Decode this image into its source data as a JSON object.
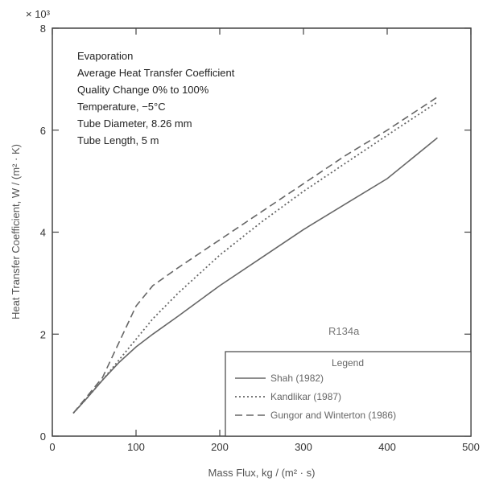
{
  "chart_data": {
    "type": "line",
    "xlabel": "Mass Flux, kg / (m² · s)",
    "ylabel": "Heat Transfer Coefficient, W / (m² · K)",
    "y_multiplier": "× 10³",
    "xlim": [
      0,
      500
    ],
    "ylim": [
      0,
      8
    ],
    "xticks": [
      0,
      100,
      200,
      300,
      400,
      500
    ],
    "yticks": [
      0,
      2,
      4,
      6,
      8
    ],
    "grid": false,
    "annotations": [
      "Evaporation",
      "Average Heat Transfer Coefficient",
      "Quality Change 0% to 100%",
      "Temperature, −5°C",
      "Tube Diameter, 8.26 mm",
      "Tube Length, 5 m"
    ],
    "refrigerant_label": "R134a",
    "legend_title": "Legend",
    "legend_position": "bottom-right",
    "series": [
      {
        "name": "Shah (1982)",
        "style": "solid",
        "x": [
          25,
          40,
          60,
          80,
          100,
          120,
          150,
          200,
          250,
          300,
          350,
          400,
          460
        ],
        "y": [
          0.45,
          0.72,
          1.1,
          1.45,
          1.75,
          2.0,
          2.35,
          2.95,
          3.5,
          4.05,
          4.55,
          5.05,
          5.85
        ]
      },
      {
        "name": "Kandlikar (1987)",
        "style": "dotted",
        "x": [
          25,
          40,
          60,
          80,
          100,
          120,
          150,
          200,
          250,
          300,
          350,
          400,
          460
        ],
        "y": [
          0.45,
          0.72,
          1.1,
          1.5,
          1.9,
          2.3,
          2.8,
          3.55,
          4.2,
          4.8,
          5.35,
          5.9,
          6.55
        ]
      },
      {
        "name": "Gungor and Winterton (1986)",
        "style": "dashed",
        "x": [
          25,
          40,
          60,
          80,
          100,
          120,
          150,
          200,
          250,
          300,
          350,
          400,
          460
        ],
        "y": [
          0.45,
          0.75,
          1.15,
          1.85,
          2.55,
          2.95,
          3.3,
          3.85,
          4.4,
          4.95,
          5.5,
          6.0,
          6.65
        ]
      }
    ]
  }
}
